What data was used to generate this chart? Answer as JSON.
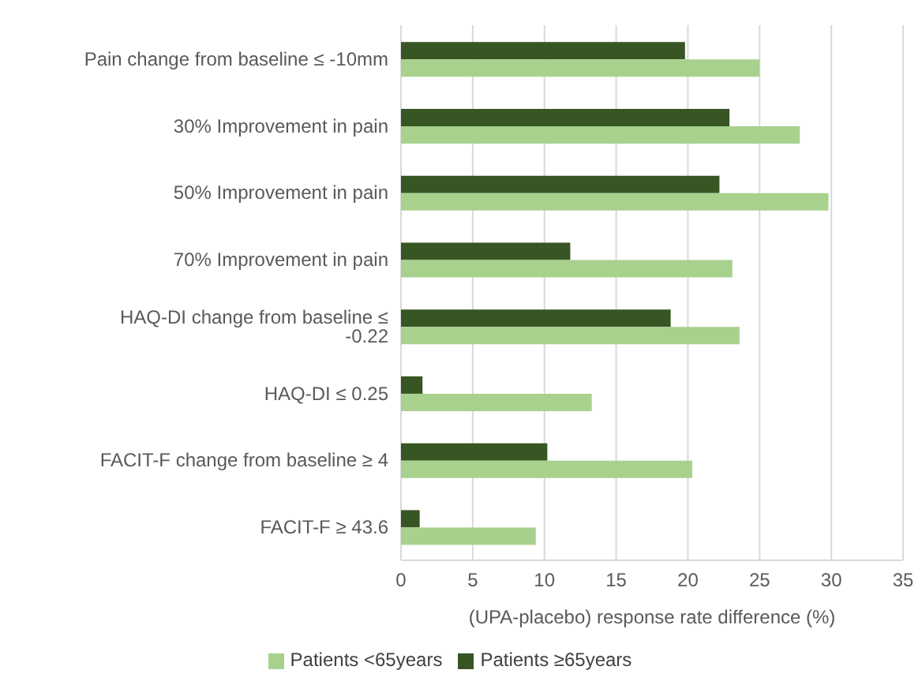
{
  "chart_data": {
    "type": "bar",
    "orientation": "horizontal",
    "xlabel": "(UPA-placebo) response rate difference (%)",
    "categories": [
      "Pain change from baseline ≤ -10mm",
      "30% Improvement in pain",
      "50% Improvement in pain",
      "70% Improvement in pain",
      "HAQ-DI change from baseline ≤ -0.22",
      "HAQ-DI ≤ 0.25",
      "FACIT-F change from baseline ≥ 4",
      "FACIT-F ≥ 43.6"
    ],
    "series": [
      {
        "name": "Patients ≥65years",
        "color": "#375623",
        "values": [
          19.8,
          22.9,
          22.2,
          11.8,
          18.8,
          1.5,
          10.2,
          1.3
        ]
      },
      {
        "name": "Patients <65years",
        "color": "#a9d18e",
        "values": [
          25.0,
          27.8,
          29.8,
          23.1,
          23.6,
          13.3,
          20.3,
          9.4
        ]
      }
    ],
    "xlim": [
      0,
      35
    ],
    "xticks": [
      0,
      5,
      10,
      15,
      20,
      25,
      30,
      35
    ],
    "grid": "x",
    "legend": "bottom"
  }
}
